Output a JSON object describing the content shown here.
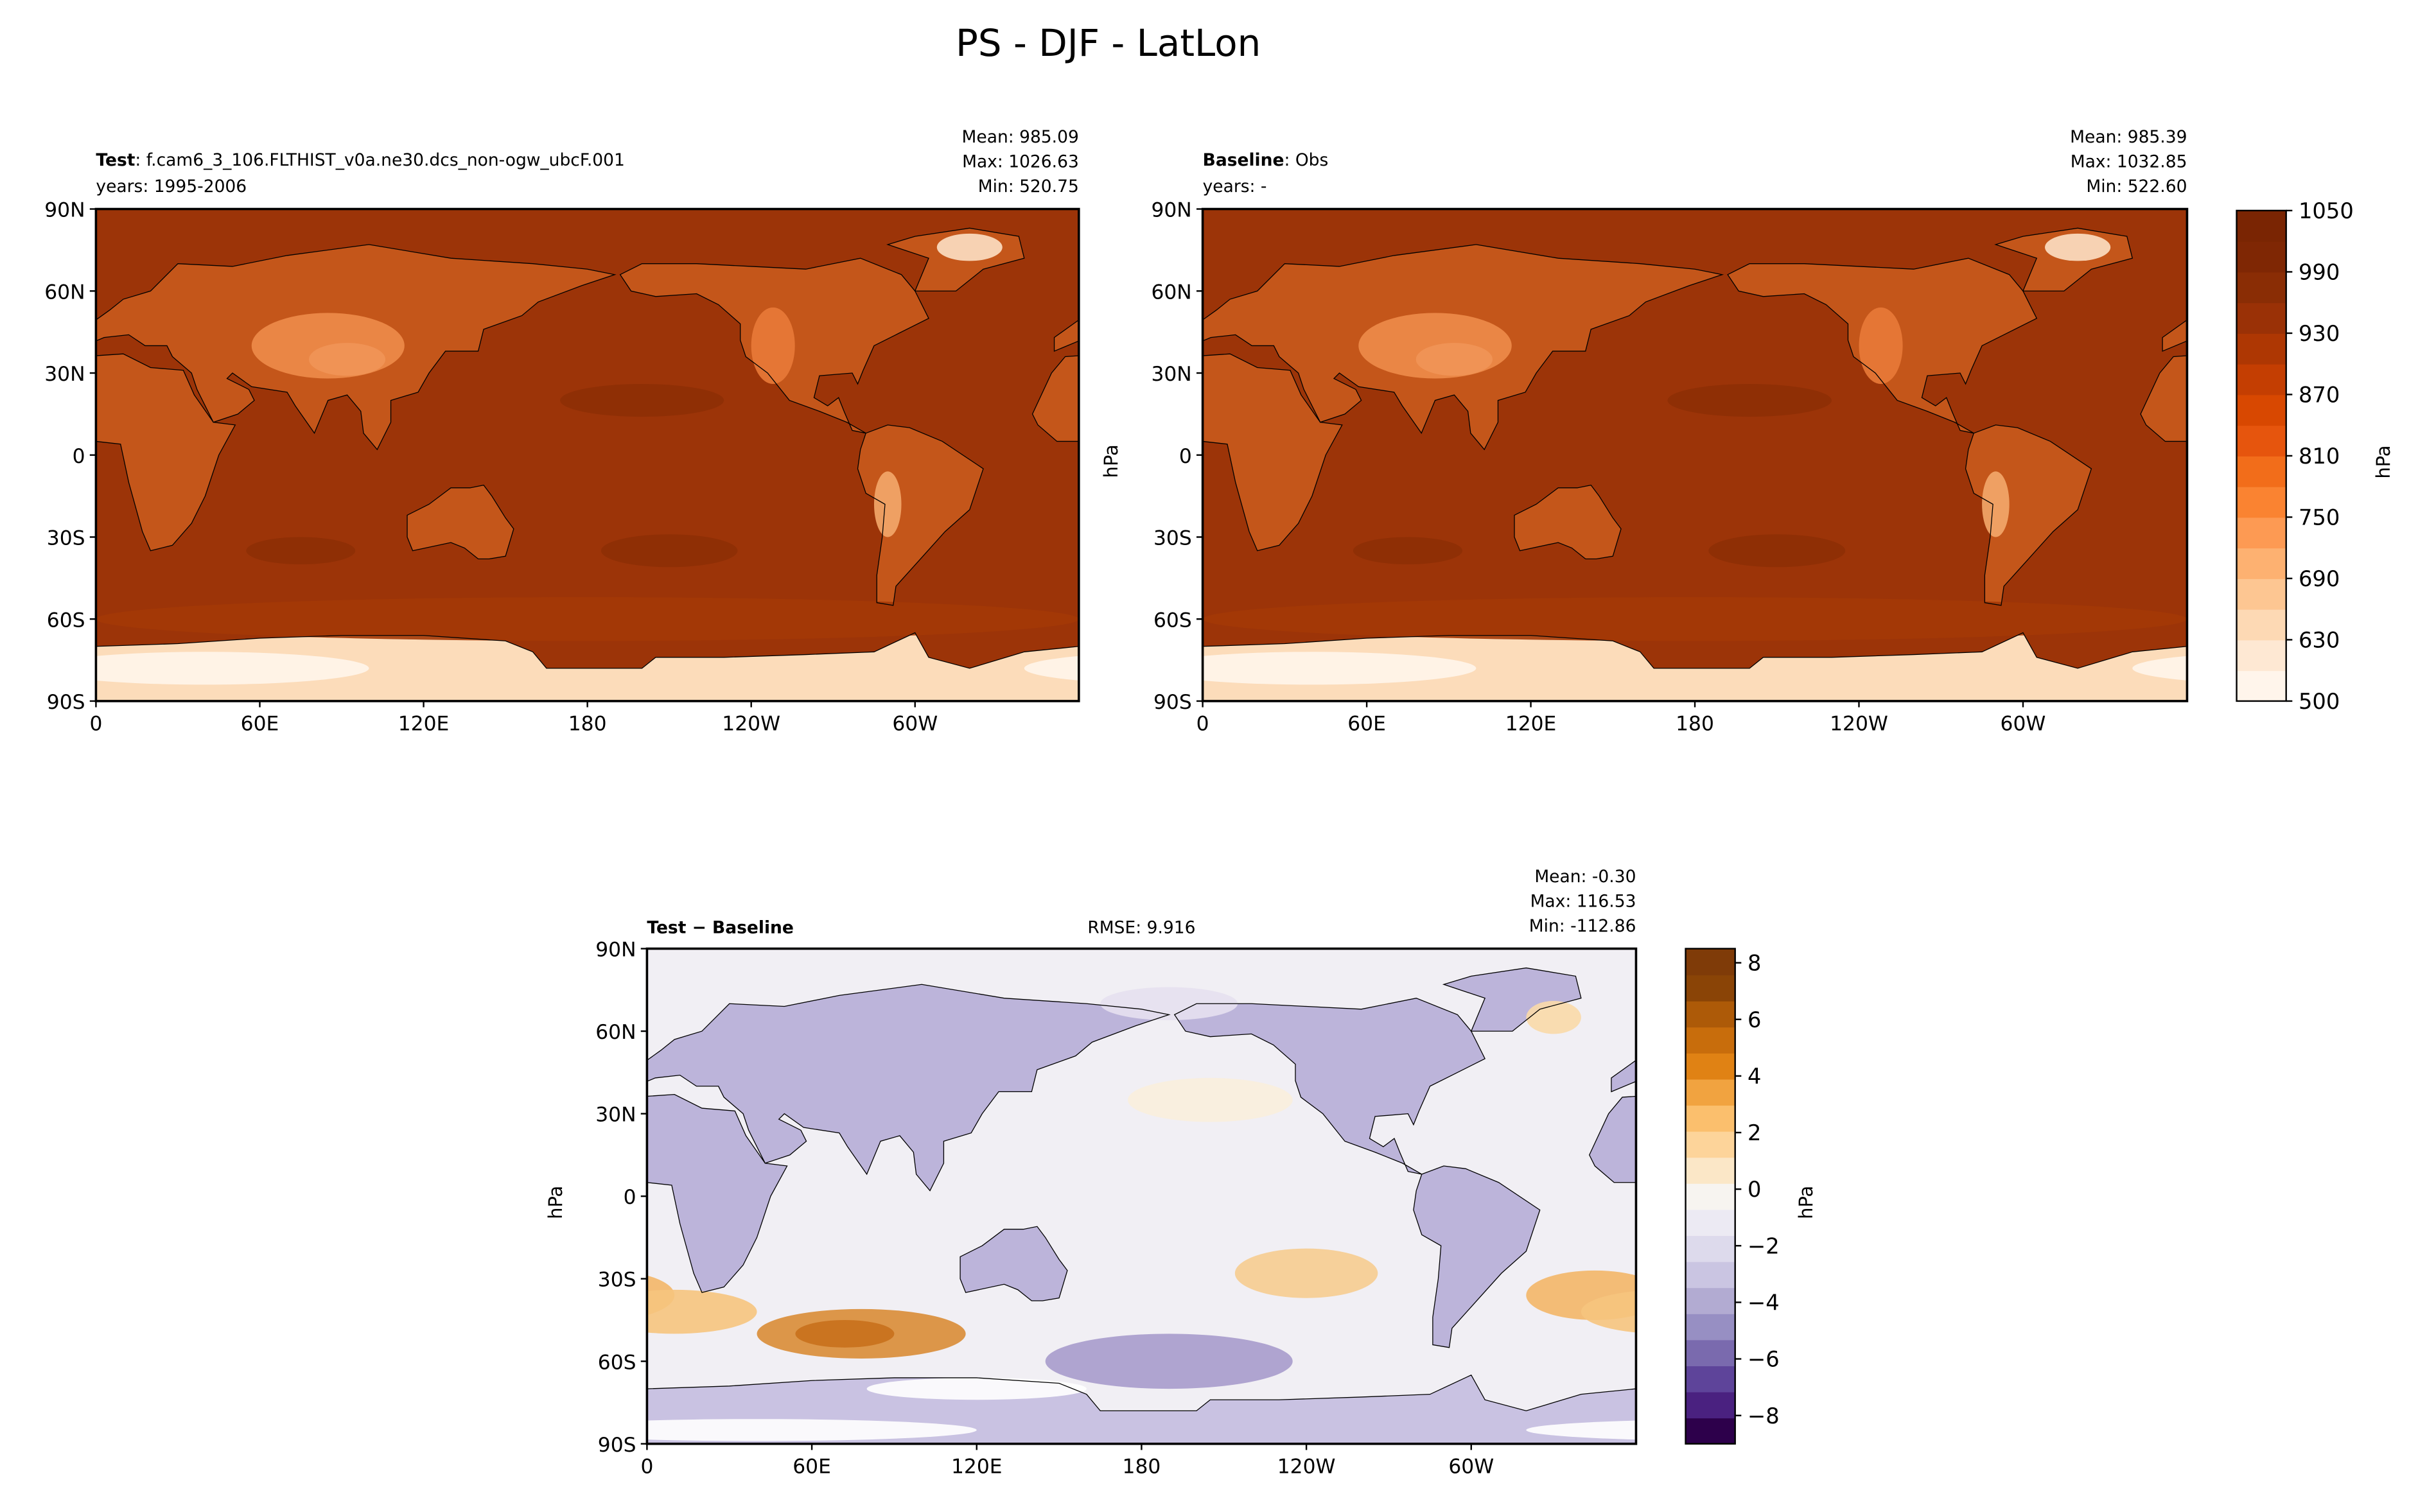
{
  "chart_data": {
    "type": "map",
    "title": "PS - DJF - LatLon",
    "panels": [
      {
        "title_bold": "Test",
        "title_rest": ": f.cam6_3_106.FLTHIST_v0a.ne30.dcs_non-ogw_ubcF.001",
        "subtitle": "years: 1995-2006",
        "stats": [
          "Mean: 985.09",
          "Max: 1026.63",
          "Min: 520.75"
        ],
        "xlim": [
          0,
          360
        ],
        "ylim": [
          -90,
          90
        ],
        "xticks": [
          0,
          {
            "value": 60,
            "label": "60E"
          },
          {
            "value": 120,
            "label": "120E"
          },
          180,
          {
            "value": 240,
            "label": "120W"
          },
          {
            "value": 300,
            "label": "60W"
          }
        ],
        "yticks": [
          {
            "value": 90,
            "label": "90N"
          },
          {
            "value": 60,
            "label": "60N"
          },
          {
            "value": 30,
            "label": "30N"
          },
          0,
          {
            "value": -30,
            "label": "30S"
          },
          {
            "value": -60,
            "label": "60S"
          },
          {
            "value": -90,
            "label": "90S"
          }
        ],
        "colormap": "Oranges"
      },
      {
        "title_bold": "Baseline",
        "title_rest": ": Obs",
        "subtitle": "years: -",
        "ylabel": "hPa",
        "stats": [
          "Mean: 985.39",
          "Max: 1032.85",
          "Min: 522.60"
        ],
        "xlim": [
          0,
          360
        ],
        "ylim": [
          -90,
          90
        ],
        "xticks": [
          0,
          {
            "value": 60,
            "label": "60E"
          },
          {
            "value": 120,
            "label": "120E"
          },
          180,
          {
            "value": 240,
            "label": "120W"
          },
          {
            "value": 300,
            "label": "60W"
          }
        ],
        "yticks": [
          {
            "value": 90,
            "label": "90N"
          },
          {
            "value": 60,
            "label": "60N"
          },
          {
            "value": 30,
            "label": "30N"
          },
          0,
          {
            "value": -30,
            "label": "30S"
          },
          {
            "value": -60,
            "label": "60S"
          },
          {
            "value": -90,
            "label": "90S"
          }
        ],
        "colormap": "Oranges"
      },
      {
        "title_bold": "Test − Baseline",
        "center_title": "RMSE: 9.916",
        "ylabel": "hPa",
        "stats": [
          "Mean: -0.30",
          "Max: 116.53",
          "Min: -112.86"
        ],
        "xlim": [
          0,
          360
        ],
        "ylim": [
          -90,
          90
        ],
        "xticks": [
          0,
          {
            "value": 60,
            "label": "60E"
          },
          {
            "value": 120,
            "label": "120E"
          },
          180,
          {
            "value": 240,
            "label": "120W"
          },
          {
            "value": 300,
            "label": "60W"
          }
        ],
        "yticks": [
          {
            "value": 90,
            "label": "90N"
          },
          {
            "value": 60,
            "label": "60N"
          },
          {
            "value": 30,
            "label": "30N"
          },
          0,
          {
            "value": -30,
            "label": "30S"
          },
          {
            "value": -60,
            "label": "60S"
          },
          {
            "value": -90,
            "label": "90S"
          }
        ],
        "colormap": "PuOr_r"
      }
    ],
    "colorbars": [
      {
        "label": "hPa",
        "spacing": "uniform",
        "ticks": [
          500,
          630,
          690,
          750,
          810,
          870,
          930,
          990,
          1050
        ],
        "colors": [
          "#fff5eb",
          "#fee8d3",
          "#fdd9b4",
          "#fdc692",
          "#fdb171",
          "#fd9a53",
          "#fa8331",
          "#f26d1a",
          "#e6550d",
          "#d84801",
          "#c43e02",
          "#ae3703",
          "#9a3106",
          "#8a2d05",
          "#7f2704",
          "#7a2503"
        ]
      },
      {
        "label": "hPa",
        "spacing": "linear",
        "clim": [
          -9,
          8.5
        ],
        "ticks": [
          {
            "value": -8,
            "label": "−8"
          },
          {
            "value": -6,
            "label": "−6"
          },
          {
            "value": -4,
            "label": "−4"
          },
          {
            "value": -2,
            "label": "−2"
          },
          0,
          2,
          4,
          6,
          8
        ],
        "colors": [
          "#2d004b",
          "#4a2180",
          "#5e449a",
          "#7a6aae",
          "#978fc3",
          "#b2abd2",
          "#cac5e2",
          "#dddaec",
          "#eceaf3",
          "#f7f4f0",
          "#fbe7c7",
          "#fdd49a",
          "#fbbf6d",
          "#f1a340",
          "#e08214",
          "#c86d0c",
          "#ad5a08",
          "#8a4406",
          "#7f3b08"
        ]
      }
    ]
  }
}
